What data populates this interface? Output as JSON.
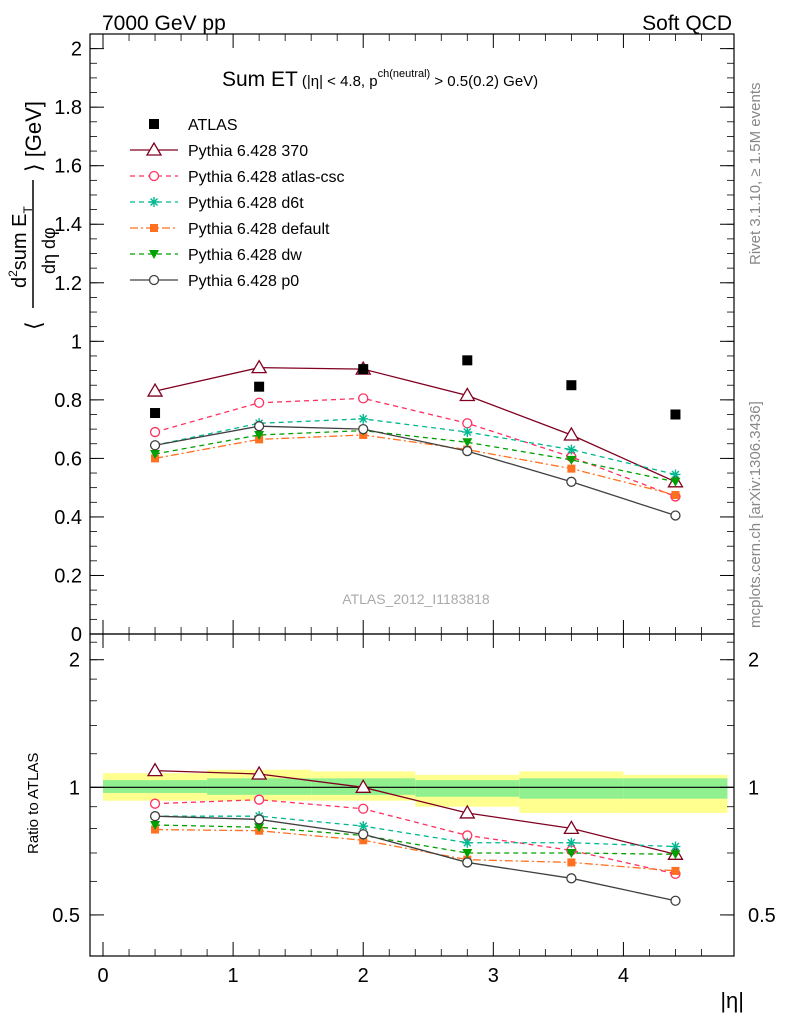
{
  "header": {
    "left": "7000 GeV pp",
    "right": "Soft QCD"
  },
  "side_labels": {
    "rivet": "Rivet 3.1.10, ≥ 1.5M events",
    "mcplots": "mcplots.cern.ch [arXiv:1306.3436]"
  },
  "chart_data": [
    {
      "type": "line",
      "panel": "main",
      "title_main": "Sum ET",
      "title_cut": "(|η| < 4.8, p",
      "title_sup": "ch(neutral)",
      "title_tail": " > 0.5(0.2) GeV)",
      "ylabel_pre": "⟨",
      "ylabel_num_d": "d",
      "ylabel_num_sup": "2",
      "ylabel_num_sum": "sum E",
      "ylabel_num_sub": "T",
      "ylabel_den": "dη dφ",
      "ylabel_post": "⟩ [GeV]",
      "watermark": "ATLAS_2012_I1183818",
      "ylim": [
        0,
        2.05
      ],
      "y_ticks": [
        "0",
        "0.2",
        "0.4",
        "0.6",
        "0.8",
        "1",
        "1.2",
        "1.4",
        "1.6",
        "1.8",
        "2"
      ],
      "legend_position": "top-left",
      "data": {
        "name": "ATLAS",
        "x": [
          0.4,
          1.2,
          2.0,
          2.8,
          3.6,
          4.4
        ],
        "values": [
          0.755,
          0.845,
          0.905,
          0.935,
          0.85,
          0.75
        ]
      },
      "series": [
        {
          "name": "Pythia 6.428 370",
          "color": "#800020",
          "marker": "triangle-open",
          "dash": "",
          "values": [
            0.83,
            0.91,
            0.905,
            0.815,
            0.68,
            0.52
          ]
        },
        {
          "name": "Pythia 6.428 atlas-csc",
          "color": "#ff3060",
          "marker": "circle-open",
          "dash": "5,4",
          "values": [
            0.69,
            0.79,
            0.805,
            0.72,
            0.605,
            0.47
          ]
        },
        {
          "name": "Pythia 6.428 d6t",
          "color": "#00b890",
          "marker": "star",
          "dash": "5,4",
          "values": [
            0.645,
            0.72,
            0.735,
            0.69,
            0.63,
            0.545
          ]
        },
        {
          "name": "Pythia 6.428 default",
          "color": "#ff7020",
          "marker": "square",
          "dash": "8,3,2,3",
          "values": [
            0.6,
            0.665,
            0.68,
            0.63,
            0.565,
            0.475
          ]
        },
        {
          "name": "Pythia 6.428 dw",
          "color": "#00a000",
          "marker": "triangle-down",
          "dash": "5,4",
          "values": [
            0.615,
            0.68,
            0.695,
            0.655,
            0.595,
            0.52
          ]
        },
        {
          "name": "Pythia 6.428 p0",
          "color": "#404040",
          "marker": "circle-open",
          "dash": "",
          "values": [
            0.645,
            0.71,
            0.7,
            0.625,
            0.52,
            0.405
          ]
        }
      ]
    },
    {
      "type": "line",
      "panel": "ratio",
      "ylabel": "Ratio to ATLAS",
      "xlabel": "|η|",
      "xlim": [
        -0.1,
        4.85
      ],
      "x_ticks": [
        "0",
        "1",
        "2",
        "3",
        "4"
      ],
      "ylim": [
        0.4,
        2.3
      ],
      "y_ticks": [
        "0.5",
        "1",
        "2"
      ],
      "x": [
        0.4,
        1.2,
        2.0,
        2.8,
        3.6,
        4.4
      ],
      "bins": [
        [
          0,
          0.8
        ],
        [
          0.8,
          1.6
        ],
        [
          1.6,
          2.4
        ],
        [
          2.4,
          3.2
        ],
        [
          3.2,
          4.0
        ],
        [
          4.0,
          4.8
        ]
      ],
      "band_outer": [
        [
          0.93,
          1.08
        ],
        [
          0.93,
          1.1
        ],
        [
          0.93,
          1.09
        ],
        [
          0.9,
          1.07
        ],
        [
          0.87,
          1.09
        ],
        [
          0.87,
          1.07
        ]
      ],
      "band_inner": [
        [
          0.97,
          1.04
        ],
        [
          0.96,
          1.05
        ],
        [
          0.96,
          1.05
        ],
        [
          0.95,
          1.04
        ],
        [
          0.94,
          1.05
        ],
        [
          0.94,
          1.05
        ]
      ],
      "band_colors": {
        "outer": "#ffff90",
        "inner": "#90f090"
      },
      "series": [
        {
          "name": "Pythia 6.428 370",
          "values": [
            1.095,
            1.075,
            1.0,
            0.87,
            0.8,
            0.695
          ]
        },
        {
          "name": "Pythia 6.428 atlas-csc",
          "values": [
            0.915,
            0.935,
            0.89,
            0.77,
            0.71,
            0.625
          ]
        },
        {
          "name": "Pythia 6.428 d6t",
          "values": [
            0.855,
            0.855,
            0.81,
            0.74,
            0.74,
            0.725
          ]
        },
        {
          "name": "Pythia 6.428 default",
          "values": [
            0.795,
            0.79,
            0.75,
            0.675,
            0.665,
            0.635
          ]
        },
        {
          "name": "Pythia 6.428 dw",
          "values": [
            0.815,
            0.805,
            0.77,
            0.7,
            0.7,
            0.695
          ]
        },
        {
          "name": "Pythia 6.428 p0",
          "values": [
            0.855,
            0.84,
            0.775,
            0.665,
            0.61,
            0.54
          ]
        }
      ]
    }
  ]
}
